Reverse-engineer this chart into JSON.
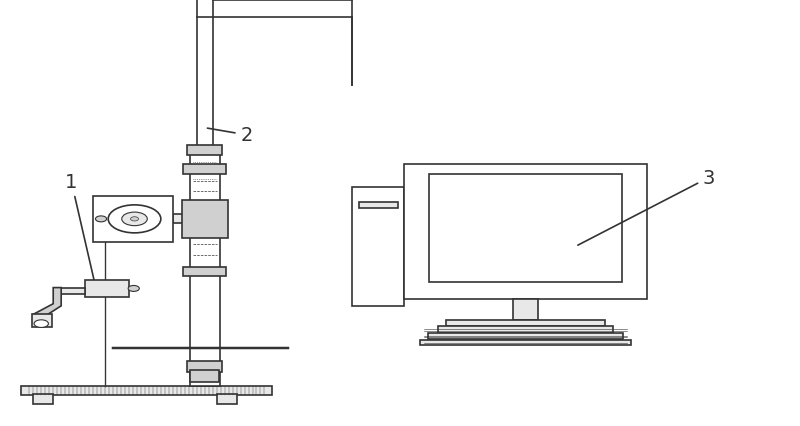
{
  "background_color": "#ffffff",
  "line_color": "#333333",
  "line_width": 1.2,
  "label_fontsize": 14,
  "fig_width": 8.0,
  "fig_height": 4.27,
  "dpi": 100
}
